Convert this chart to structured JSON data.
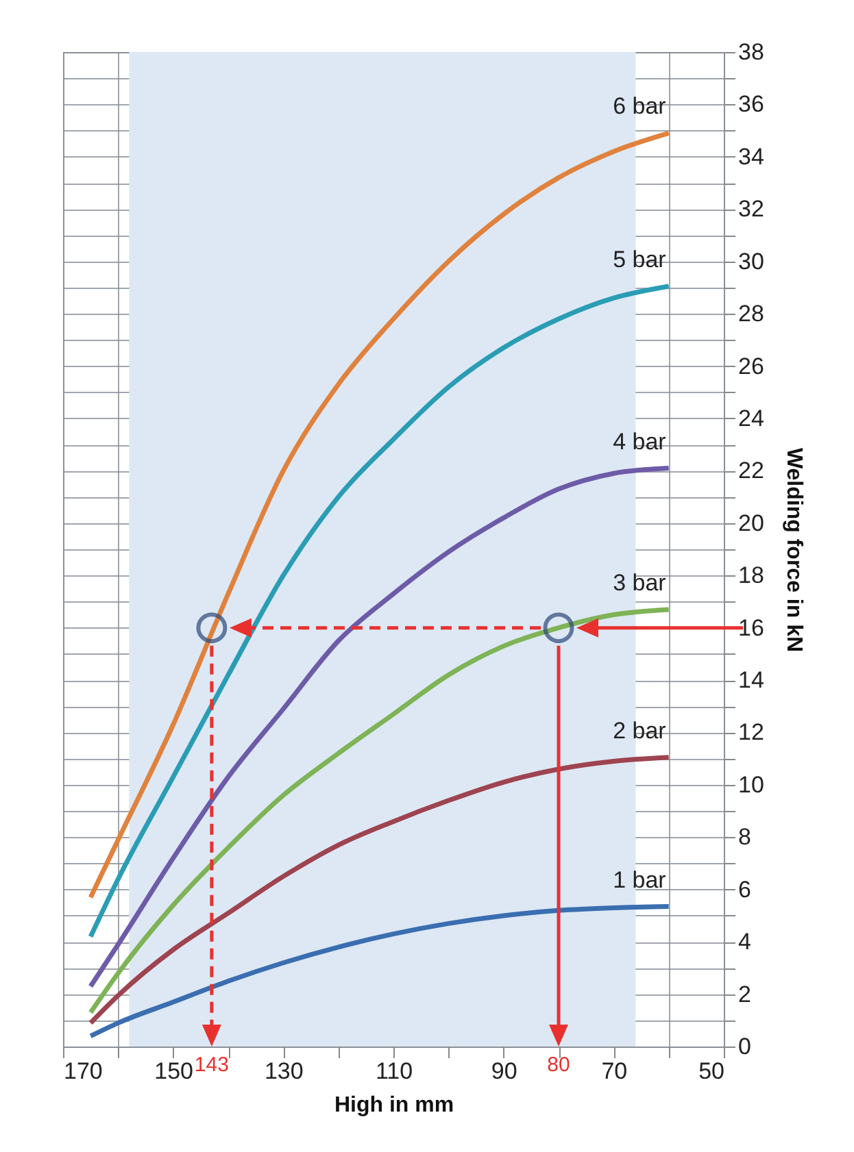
{
  "chart_data": {
    "type": "line",
    "xlabel": "High in mm",
    "ylabel": "Welding force in kN",
    "x": [
      165,
      160,
      150,
      140,
      130,
      120,
      110,
      100,
      90,
      80,
      70,
      60
    ],
    "series": [
      {
        "name": "1 bar",
        "color": "#3a6eb0",
        "values": [
          0.4,
          0.9,
          1.7,
          2.5,
          3.2,
          3.8,
          4.3,
          4.7,
          5.0,
          5.2,
          5.3,
          5.35
        ]
      },
      {
        "name": "2 bar",
        "color": "#9e4450",
        "values": [
          0.9,
          1.95,
          3.7,
          5.1,
          6.5,
          7.7,
          8.6,
          9.4,
          10.1,
          10.6,
          10.9,
          11.05
        ]
      },
      {
        "name": "3 bar",
        "color": "#7eb356",
        "values": [
          1.3,
          2.8,
          5.4,
          7.6,
          9.6,
          11.2,
          12.7,
          14.2,
          15.3,
          16.0,
          16.5,
          16.7
        ]
      },
      {
        "name": "4 bar",
        "color": "#6d5ba8",
        "values": [
          2.3,
          3.9,
          7.2,
          10.3,
          12.9,
          15.5,
          17.3,
          18.9,
          20.2,
          21.3,
          21.9,
          22.1
        ]
      },
      {
        "name": "5 bar",
        "color": "#2a9db5",
        "values": [
          4.2,
          6.4,
          10.3,
          14.2,
          18.0,
          21.0,
          23.2,
          25.2,
          26.7,
          27.8,
          28.6,
          29.05
        ]
      },
      {
        "name": "6 bar",
        "color": "#e0823d",
        "values": [
          5.7,
          7.9,
          12.3,
          17.3,
          22.0,
          25.3,
          27.8,
          30.0,
          31.8,
          33.2,
          34.2,
          34.9
        ]
      },
      {
        "type": "scatter",
        "color": "#2e4a7a",
        "marker": "circle",
        "x": [
          143,
          80
        ],
        "values": [
          16,
          16
        ]
      }
    ],
    "annotations": [
      {
        "text": "143",
        "x": 143,
        "y": 0
      },
      {
        "text": "80",
        "x": 80,
        "y": 0
      }
    ],
    "bands": [
      {
        "axis": "x",
        "from": 158,
        "to": 66,
        "color": "#dde8f4"
      }
    ],
    "xlim": [
      170,
      50
    ],
    "xticks": [
      170,
      {
        "value": 160,
        "label": null
      },
      150,
      {
        "value": 140,
        "label": null
      },
      130,
      {
        "value": 120,
        "label": null
      },
      110,
      {
        "value": 100,
        "label": null
      },
      90,
      {
        "value": 80,
        "label": null
      },
      70,
      {
        "value": 60,
        "label": null
      },
      50
    ],
    "ylim": [
      0,
      38
    ],
    "yticks": [
      0,
      {
        "value": 1,
        "label": null
      },
      2,
      {
        "value": 3,
        "label": null
      },
      4,
      {
        "value": 5,
        "label": null
      },
      6,
      {
        "value": 7,
        "label": null
      },
      8,
      {
        "value": 9,
        "label": null
      },
      10,
      {
        "value": 11,
        "label": null
      },
      12,
      {
        "value": 13,
        "label": null
      },
      14,
      {
        "value": 15,
        "label": null
      },
      16,
      {
        "value": 17,
        "label": null
      },
      18,
      {
        "value": 19,
        "label": null
      },
      20,
      {
        "value": 21,
        "label": null
      },
      22,
      {
        "value": 23,
        "label": null
      },
      24,
      {
        "value": 25,
        "label": null
      },
      26,
      {
        "value": 27,
        "label": null
      },
      28,
      {
        "value": 29,
        "label": null
      },
      30,
      {
        "value": 31,
        "label": null
      },
      32,
      {
        "value": 33,
        "label": null
      },
      34,
      {
        "value": 35,
        "label": null
      },
      36,
      {
        "value": 37,
        "label": null
      },
      38
    ],
    "grid": true,
    "marker": "none",
    "line_style": "solid"
  }
}
